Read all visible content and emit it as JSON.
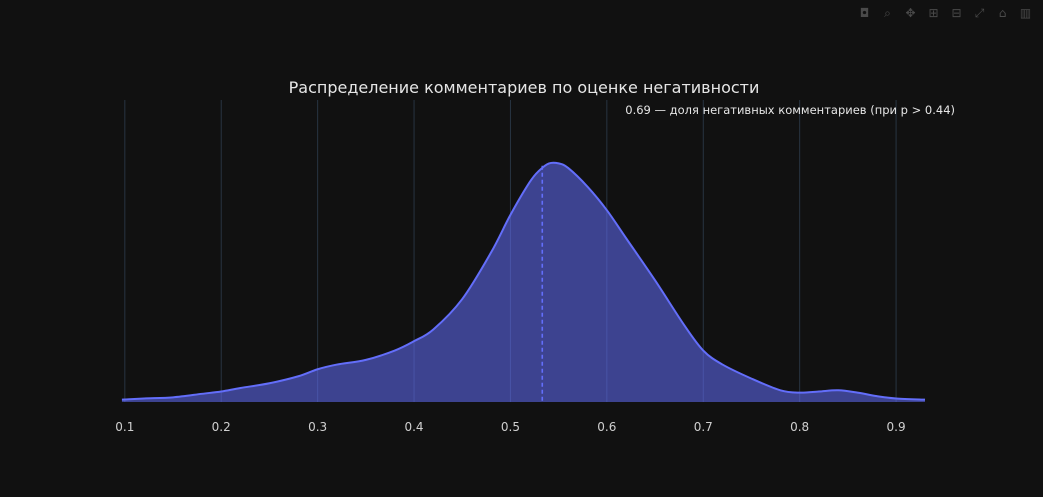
{
  "modebar": {
    "icons": [
      "camera-icon",
      "zoom-icon",
      "pan-icon",
      "zoom-in-icon",
      "zoom-out-icon",
      "autoscale-icon",
      "reset-axes-icon",
      "plotly-logo-icon"
    ]
  },
  "colors": {
    "background": "#111111",
    "grid": "#283442",
    "line": "#636efa",
    "fill": "rgba(99,110,250,0.55)",
    "text": "#e6e6e6"
  },
  "chart_data": {
    "type": "area",
    "title": "Распределение комментариев по оценке негативности",
    "xlabel": "",
    "ylabel": "",
    "xlim": [
      0.095,
      0.93
    ],
    "ylim": [
      0,
      1.12
    ],
    "xticks": [
      0.1,
      0.2,
      0.3,
      0.4,
      0.5,
      0.6,
      0.7,
      0.8,
      0.9
    ],
    "xtick_labels": [
      "0.1",
      "0.2",
      "0.3",
      "0.4",
      "0.5",
      "0.6",
      "0.7",
      "0.8",
      "0.9"
    ],
    "grid": "vertical",
    "y_axis_visible": false,
    "series": [
      {
        "x": [
          0.097,
          0.12,
          0.15,
          0.18,
          0.2,
          0.22,
          0.25,
          0.28,
          0.3,
          0.32,
          0.35,
          0.38,
          0.4,
          0.42,
          0.45,
          0.48,
          0.5,
          0.52,
          0.53,
          0.54,
          0.55,
          0.56,
          0.58,
          0.6,
          0.62,
          0.65,
          0.68,
          0.7,
          0.72,
          0.75,
          0.78,
          0.8,
          0.82,
          0.84,
          0.86,
          0.88,
          0.9,
          0.93
        ],
        "y": [
          0.01,
          0.015,
          0.02,
          0.035,
          0.045,
          0.06,
          0.08,
          0.11,
          0.14,
          0.16,
          0.18,
          0.22,
          0.26,
          0.31,
          0.44,
          0.64,
          0.8,
          0.94,
          0.99,
          1.02,
          1.02,
          1.0,
          0.92,
          0.82,
          0.7,
          0.52,
          0.33,
          0.22,
          0.16,
          0.1,
          0.05,
          0.04,
          0.045,
          0.05,
          0.04,
          0.025,
          0.015,
          0.01
        ]
      }
    ],
    "mean_line": {
      "x": 0.533,
      "y": 1.01,
      "style": "dashed"
    },
    "annotation": "0.69 — доля негативных комментариев (при p > 0.44)"
  }
}
